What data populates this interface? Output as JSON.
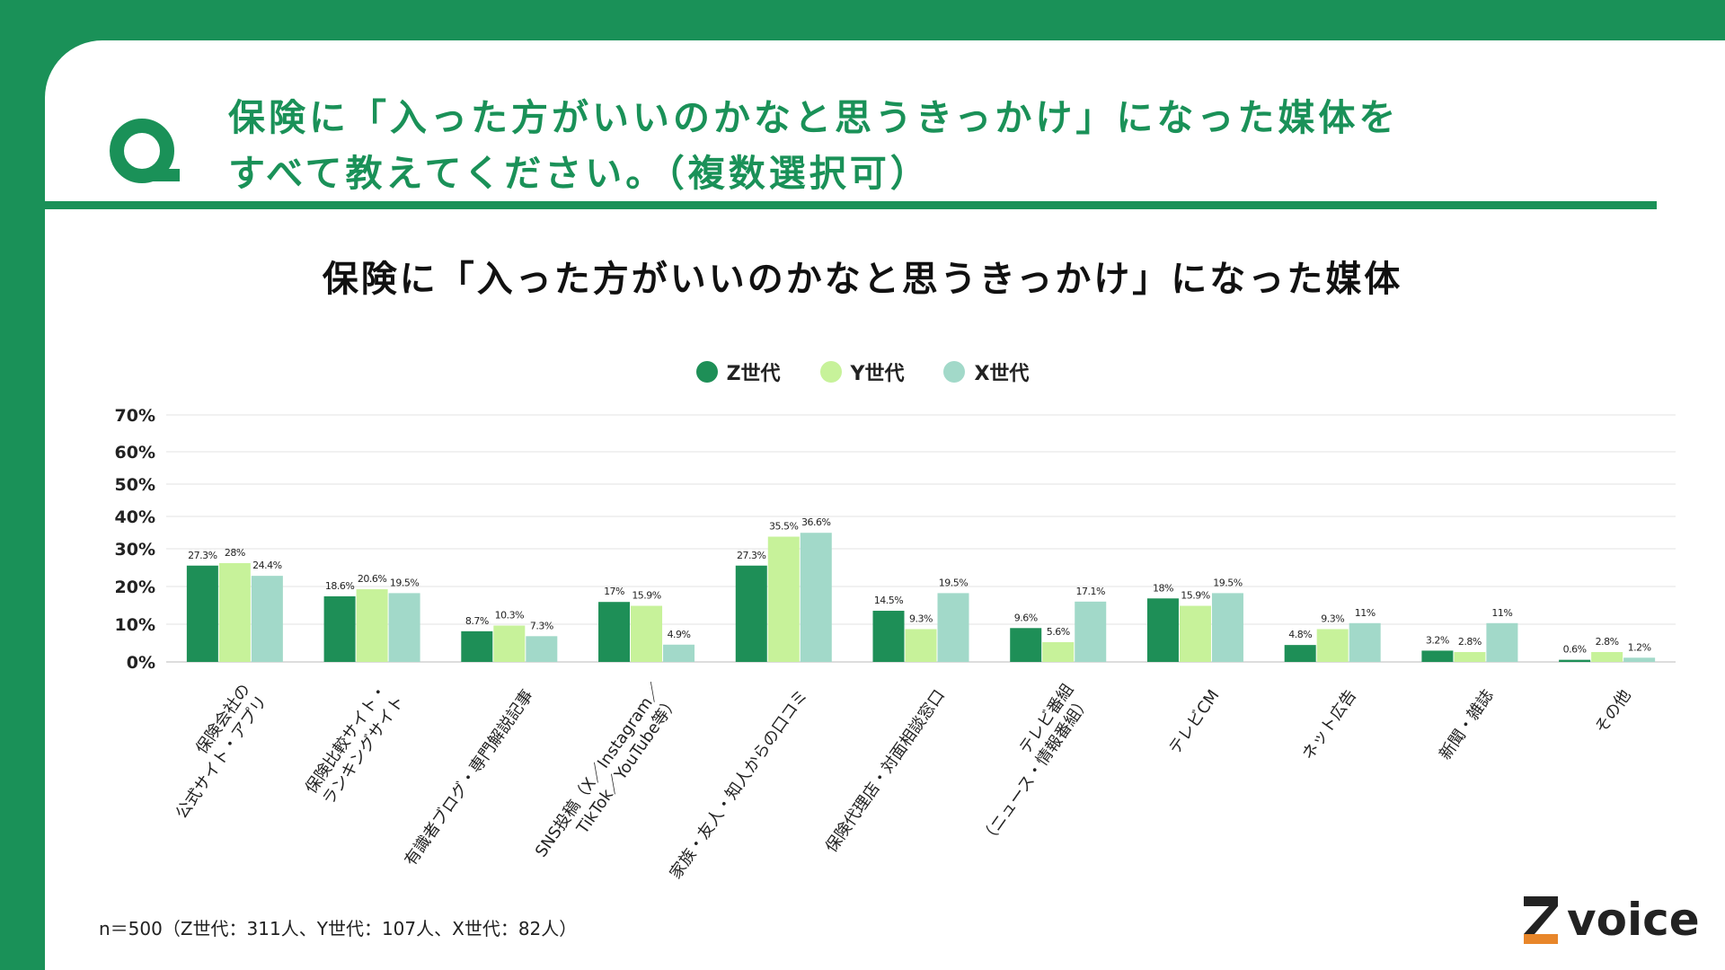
{
  "header": {
    "question_lines": [
      "保険に「入った方がいいのかなと思うきっかけ」になった媒体を",
      "すべて教えてください。（複数選択可）"
    ]
  },
  "colors": {
    "brand": "#1a9158",
    "series": [
      "#1e8f57",
      "#c7f29a",
      "#a2d9c9"
    ]
  },
  "footnote": "n＝500（Z世代：311人、Y世代：107人、X世代：82人）",
  "logo_text": "voice",
  "chart_data": {
    "type": "bar",
    "title": "保険に「入った方がいいのかなと思うきっかけ」になった媒体",
    "ylim": [
      0,
      70
    ],
    "y_ticks": [
      "70%",
      "60%",
      "50%",
      "40%",
      "30%",
      "20%",
      "10%",
      "0%"
    ],
    "legend_position": "top-center",
    "grid": true,
    "categories": [
      [
        "保険会社の",
        "公式サイト・アプリ"
      ],
      [
        "保険比較サイト・",
        "ランキングサイト"
      ],
      [
        "有識者ブログ・専門解説記事"
      ],
      [
        "SNS投稿（X／Instagram／",
        "TikTok／YouTube等）"
      ],
      [
        "家族・友人・知人からの口コミ"
      ],
      [
        "保険代理店・対面相談窓口"
      ],
      [
        "テレビ番組",
        "（ニュース・情報番組）"
      ],
      [
        "テレビCM"
      ],
      [
        "ネット広告"
      ],
      [
        "新聞・雑誌"
      ],
      [
        "その他"
      ]
    ],
    "series": [
      {
        "name": "Z世代",
        "values": [
          27.3,
          18.6,
          8.7,
          17,
          27.3,
          14.5,
          9.6,
          18,
          4.8,
          3.2,
          0.6
        ],
        "labels": [
          "27.3%",
          "18.6%",
          "8.7%",
          "17%",
          "27.3%",
          "14.5%",
          "9.6%",
          "18%",
          "4.8%",
          "3.2%",
          "0.6%"
        ]
      },
      {
        "name": "Y世代",
        "values": [
          28,
          20.6,
          10.3,
          15.9,
          35.5,
          9.3,
          5.6,
          15.9,
          9.3,
          2.8,
          2.8
        ],
        "labels": [
          "28%",
          "20.6%",
          "10.3%",
          "15.9%",
          "35.5%",
          "9.3%",
          "5.6%",
          "15.9%",
          "9.3%",
          "2.8%",
          "2.8%"
        ]
      },
      {
        "name": "X世代",
        "values": [
          24.4,
          19.5,
          7.3,
          4.9,
          36.6,
          19.5,
          17.1,
          19.5,
          11,
          11,
          1.2
        ],
        "labels": [
          "24.4%",
          "19.5%",
          "7.3%",
          "4.9%",
          "36.6%",
          "19.5%",
          "17.1%",
          "19.5%",
          "11%",
          "11%",
          "1.2%"
        ]
      }
    ]
  }
}
